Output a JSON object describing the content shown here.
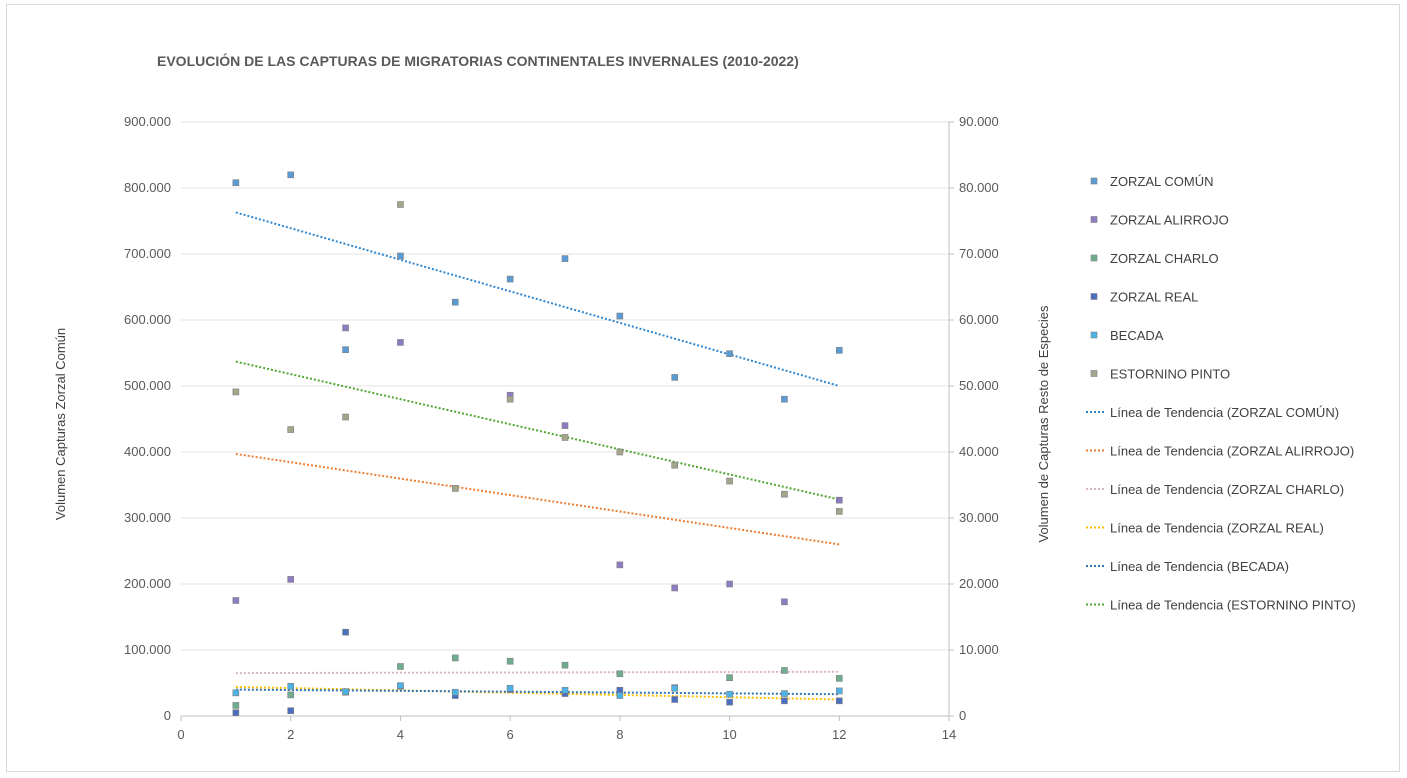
{
  "chart_data": {
    "type": "scatter",
    "title": "EVOLUCIÓN DE LAS CAPTURAS DE MIGRATORIAS CONTINENTALES INVERNALES (2010-2022)",
    "ylabel_left": "Volumen Capturas Zorzal Común",
    "ylabel_right": "Volumen de Capturas Resto de Especies",
    "xlim": [
      0,
      14
    ],
    "x_ticks": [
      "0",
      "2",
      "4",
      "6",
      "8",
      "10",
      "12",
      "14"
    ],
    "ylim_left": [
      0,
      900000
    ],
    "y_ticks_left": [
      "0",
      "100.000",
      "200.000",
      "300.000",
      "400.000",
      "500.000",
      "600.000",
      "700.000",
      "800.000",
      "900.000"
    ],
    "ylim_right": [
      0,
      90000
    ],
    "y_ticks_right": [
      "0",
      "10.000",
      "20.000",
      "30.000",
      "40.000",
      "50.000",
      "60.000",
      "70.000",
      "80.000",
      "90.000"
    ],
    "grid": "horizontal",
    "legend_position": "right",
    "x": [
      1,
      2,
      3,
      4,
      5,
      6,
      7,
      8,
      9,
      10,
      11,
      12
    ],
    "series": [
      {
        "name": "ZORZAL COMÚN",
        "axis": "left",
        "color": "#5b9bd5",
        "values": [
          808000,
          820000,
          555000,
          697000,
          627000,
          662000,
          693000,
          606000,
          513000,
          549000,
          480000,
          554000
        ]
      },
      {
        "name": "ZORZAL ALIRROJO",
        "axis": "right",
        "color": "#8e7cc3",
        "values": [
          17500,
          20700,
          58800,
          56600,
          34500,
          48600,
          44000,
          22900,
          19400,
          20000,
          17300,
          32700
        ]
      },
      {
        "name": "ZORZAL CHARLO",
        "axis": "right",
        "color": "#70ad8f",
        "values": [
          1600,
          3200,
          3600,
          7500,
          8800,
          8300,
          7700,
          6400,
          4300,
          5800,
          6900,
          5700
        ]
      },
      {
        "name": "ZORZAL REAL",
        "axis": "right",
        "color": "#4a6fc0",
        "values": [
          500,
          800,
          12700,
          4500,
          3100,
          4000,
          3400,
          3900,
          2500,
          2100,
          2300,
          2300
        ]
      },
      {
        "name": "BECADA",
        "axis": "right",
        "color": "#4db3e6",
        "values": [
          3500,
          4500,
          3700,
          4600,
          3600,
          4200,
          3900,
          3100,
          4200,
          3300,
          3400,
          3800
        ]
      },
      {
        "name": "ESTORNINO PINTO",
        "axis": "right",
        "color": "#a5a58d",
        "values": [
          49100,
          43400,
          45300,
          77500,
          34500,
          48000,
          42200,
          40000,
          38000,
          35600,
          33600,
          31000
        ]
      }
    ],
    "trendlines": [
      {
        "name": "Línea de Tendencia (ZORZAL COMÚN)",
        "axis": "left",
        "color": "#2e86d0",
        "from": [
          1,
          763000
        ],
        "to": [
          12,
          500000
        ]
      },
      {
        "name": "Línea de Tendencia (ZORZAL ALIRROJO)",
        "axis": "right",
        "color": "#ed7d31",
        "from": [
          1,
          39700
        ],
        "to": [
          12,
          26000
        ]
      },
      {
        "name": "Línea de Tendencia (ZORZAL CHARLO)",
        "axis": "right",
        "color": "#d9b3c6",
        "from": [
          1,
          6500
        ],
        "to": [
          12,
          6700
        ]
      },
      {
        "name": "Línea de Tendencia (ZORZAL REAL)",
        "axis": "right",
        "color": "#ffc000",
        "from": [
          1,
          4400
        ],
        "to": [
          12,
          2500
        ]
      },
      {
        "name": "Línea de Tendencia (BECADA)",
        "axis": "right",
        "color": "#2f75b5",
        "from": [
          1,
          4000
        ],
        "to": [
          12,
          3300
        ]
      },
      {
        "name": "Línea de Tendencia (ESTORNINO PINTO)",
        "axis": "right",
        "color": "#4ea72e",
        "from": [
          1,
          53700
        ],
        "to": [
          12,
          32800
        ]
      }
    ]
  }
}
